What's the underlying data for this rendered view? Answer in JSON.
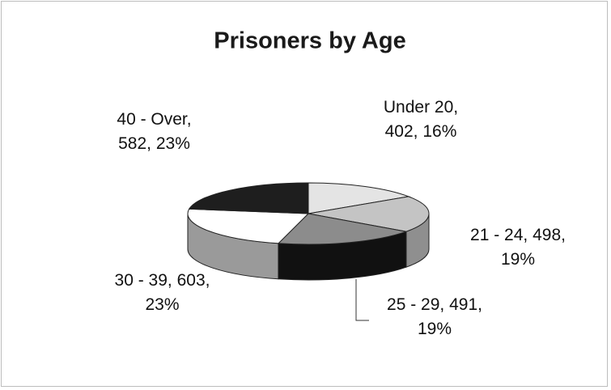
{
  "chart_data": {
    "type": "pie3d",
    "title": "Prisoners by Age",
    "labels": [
      "Under 20, 402, 16%",
      "21 - 24, 498, 19%",
      "25 - 29, 491, 19%",
      "30 - 39, 603, 23%",
      "40 - Over, 582, 23%"
    ],
    "values": [
      402,
      498,
      491,
      603,
      582
    ],
    "colors": [
      "#e4e4e4",
      "#c4c4c4",
      "#8c8c8c",
      "#ffffff",
      "#1e1e1e"
    ],
    "side_colors": [
      "#bdbdbd",
      "#8f8f8f",
      "#111111",
      "#9a9a9a",
      "#111111"
    ]
  }
}
